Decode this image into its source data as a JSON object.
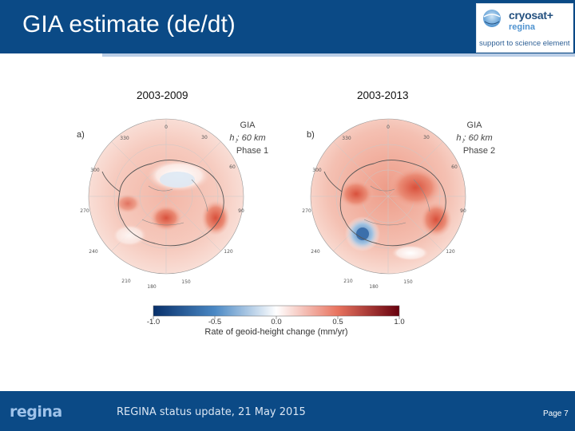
{
  "header": {
    "title": "GIA estimate (de/dt)"
  },
  "logo": {
    "name_line1": "cryosat+",
    "name_line2": "regina",
    "tagline": "support to science element"
  },
  "panels": {
    "left_period": "2003-2009",
    "right_period": "2003-2013"
  },
  "figure": {
    "left_map": {
      "tag": "a)",
      "legend_line1": "GIA",
      "legend_line2": "h : 60 km",
      "legend_subscript": "l",
      "legend_line3": "Phase 1"
    },
    "right_map": {
      "tag": "b)",
      "legend_line1": "GIA",
      "legend_line2": "h : 60 km",
      "legend_subscript": "l",
      "legend_line3": "Phase 2"
    },
    "longitude_labels": [
      "0",
      "30",
      "60",
      "90",
      "120",
      "150",
      "180",
      "210",
      "240",
      "270",
      "300",
      "330"
    ],
    "colorbar": {
      "ticks": [
        "-1.0",
        "-0.5",
        "0.0",
        "0.5",
        "1.0"
      ],
      "label": "Rate of geoid-height change (mm/yr)",
      "colors": [
        "#08306b",
        "#4a88c4",
        "#ffffff",
        "#e8735f",
        "#67000d"
      ]
    }
  },
  "footer": {
    "logo": "regina",
    "status": "REGINA status update,  21 May 2015",
    "page": "Page 7"
  }
}
